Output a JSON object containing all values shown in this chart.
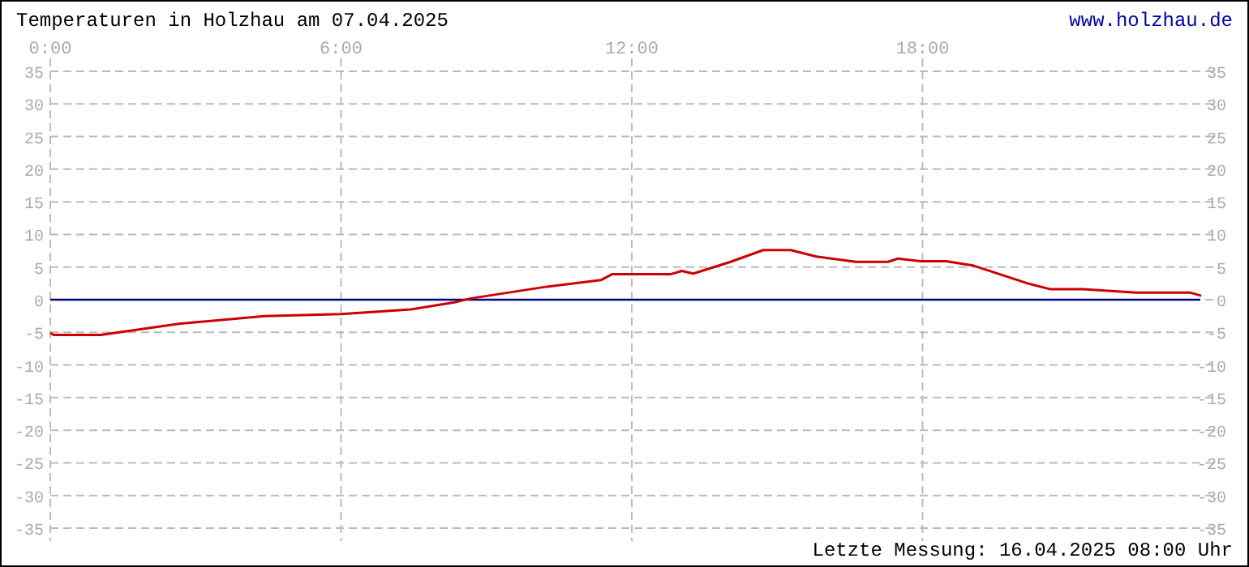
{
  "chart_data": {
    "type": "line",
    "title": "Temperaturen in Holzhau am 07.04.2025",
    "annotations": [
      "www.holzhau.de",
      "Letzte Messung: 16.04.2025 08:00 Uhr"
    ],
    "x": [
      0,
      0.07,
      1.04,
      2.65,
      4.42,
      6.0,
      7.44,
      8.34,
      8.68,
      10.25,
      11.36,
      11.59,
      12.8,
      13.03,
      13.27,
      14.04,
      14.71,
      15.28,
      15.81,
      16.62,
      17.29,
      17.49,
      17.96,
      18.49,
      19.06,
      20.17,
      20.64,
      21.31,
      22.41,
      23.52,
      23.75
    ],
    "series": [
      {
        "color": "#cc0000",
        "values": [
          -5.1,
          -5.4,
          -5.4,
          -3.7,
          -2.5,
          -2.2,
          -1.5,
          -0.4,
          0.2,
          2.0,
          3.0,
          3.9,
          3.9,
          4.4,
          4.0,
          5.8,
          7.6,
          7.6,
          6.6,
          5.8,
          5.8,
          6.3,
          5.9,
          5.9,
          5.2,
          2.5,
          1.6,
          1.6,
          1.1,
          1.1,
          0.6
        ]
      }
    ],
    "xlim": [
      0,
      24
    ],
    "xticks": [
      {
        "value": 0,
        "label": "0:00"
      },
      {
        "value": 6,
        "label": "6:00"
      },
      {
        "value": 12,
        "label": "12:00"
      },
      {
        "value": 18,
        "label": "18:00"
      }
    ],
    "ylim": [
      -35,
      35
    ],
    "yticks": [
      -35,
      -30,
      -25,
      -20,
      -15,
      -10,
      -5,
      0,
      5,
      10,
      15,
      20,
      25,
      30,
      35
    ],
    "y2lim": [
      -35,
      35
    ],
    "y2ticks": [
      -35,
      -30,
      -25,
      -20,
      -15,
      -10,
      -5,
      0,
      5,
      10,
      15,
      20,
      25,
      30,
      35
    ],
    "ref_lines": [
      {
        "axis": "y",
        "value": 0,
        "color": "#000080"
      }
    ],
    "grid": true,
    "line_style": "solid",
    "marker": "none"
  }
}
